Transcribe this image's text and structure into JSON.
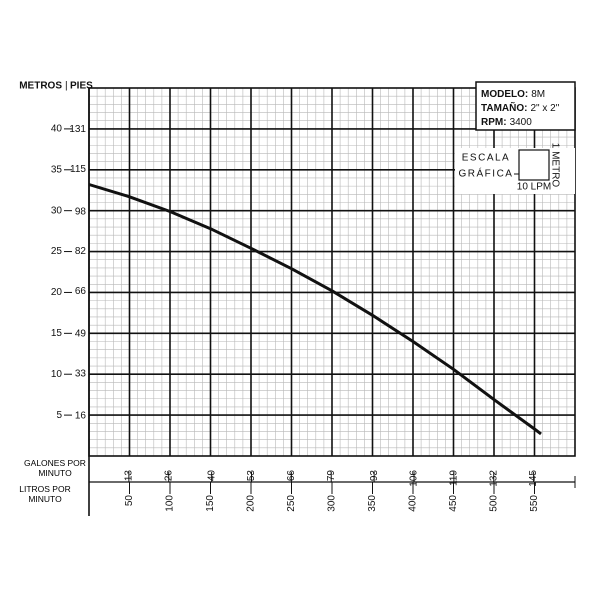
{
  "chart_data": {
    "type": "line",
    "y_label": "METROS",
    "y2_label": "PIES",
    "x_label": "LITROS POR MINUTO",
    "x2_label": "GALONES POR MINUTO",
    "x": [
      0,
      50,
      100,
      150,
      200,
      250,
      300,
      350,
      400,
      450,
      500,
      550,
      558
    ],
    "values": [
      33.2,
      31.7,
      29.9,
      27.8,
      25.4,
      22.9,
      20.2,
      17.2,
      14,
      10.6,
      6.9,
      3.3,
      2.7
    ],
    "color": "#111111",
    "xlim": [
      0,
      600
    ],
    "xticks": [
      50,
      100,
      150,
      200,
      250,
      300,
      350,
      400,
      450,
      500,
      550
    ],
    "x2lim": [
      0,
      158.5
    ],
    "x2ticks": [
      13,
      26,
      40,
      53,
      66,
      79,
      93,
      106,
      119,
      132,
      145
    ],
    "ylim": [
      0,
      45
    ],
    "yticks": [
      5,
      10,
      15,
      20,
      25,
      30,
      35,
      40
    ],
    "y2lim": [
      0,
      147.6
    ],
    "y2ticks": [
      16,
      33,
      49,
      66,
      82,
      98,
      115,
      131
    ],
    "grid": true,
    "info": [
      {
        "key": "MODELO:",
        "value": "8M"
      },
      {
        "key": "TAMAÑO:",
        "value": "2\" x 2\""
      },
      {
        "key": "RPM:",
        "value": "3400"
      }
    ],
    "scale_title": [
      "ESCALA",
      "GRÁFICA"
    ],
    "scale_y": "1 METRO",
    "scale_x": "10 LPM"
  }
}
